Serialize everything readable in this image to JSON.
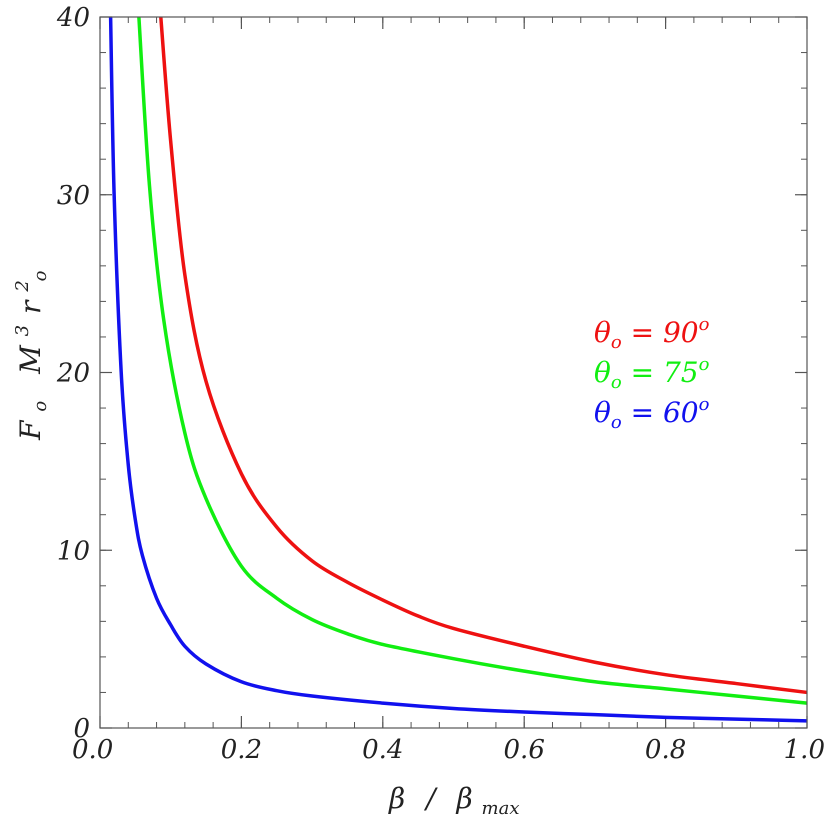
{
  "chart_data": {
    "type": "line",
    "title": "",
    "xlabel": {
      "main": "β",
      "slash": "/",
      "sub_base": "β",
      "sub": "max"
    },
    "ylabel": {
      "F": "F",
      "F_sub": "o",
      "M": "M",
      "M_sup": "3",
      "r": "r",
      "r_sub": "o",
      "r_sup": "2"
    },
    "xlim": [
      0,
      1
    ],
    "ylim": [
      0,
      40
    ],
    "xticks": [
      0,
      0.2,
      0.4,
      0.6,
      0.8,
      1.0
    ],
    "xtick_labels": [
      "0.0",
      "0.2",
      "0.4",
      "0.6",
      "0.8",
      "1.0"
    ],
    "yticks": [
      0,
      10,
      20,
      30,
      40
    ],
    "ytick_labels": [
      "0",
      "10",
      "20",
      "30",
      "40"
    ],
    "grid": false,
    "legend_position": "right-middle",
    "series": [
      {
        "name": "θo = 90o",
        "label": {
          "theta": "θ",
          "sub": "o",
          "eq": " = ",
          "value": "90",
          "sup": "o"
        },
        "color": "#ee1111",
        "x": [
          0.086,
          0.1,
          0.12,
          0.15,
          0.2,
          0.25,
          0.3,
          0.35,
          0.4,
          0.45,
          0.5,
          0.6,
          0.7,
          0.8,
          0.9,
          1.0
        ],
        "y": [
          40,
          33,
          25.5,
          19.5,
          14.3,
          11.3,
          9.4,
          8.2,
          7.2,
          6.3,
          5.6,
          4.6,
          3.7,
          3.0,
          2.5,
          2.0
        ]
      },
      {
        "name": "θo = 75o",
        "label": {
          "theta": "θ",
          "sub": "o",
          "eq": " = ",
          "value": "75",
          "sup": "o"
        },
        "color": "#11ee11",
        "x": [
          0.055,
          0.07,
          0.09,
          0.12,
          0.15,
          0.2,
          0.25,
          0.3,
          0.35,
          0.4,
          0.5,
          0.6,
          0.7,
          0.8,
          0.9,
          1.0
        ],
        "y": [
          40,
          30.5,
          23,
          16.6,
          12.9,
          9.1,
          7.3,
          6.1,
          5.3,
          4.7,
          3.9,
          3.2,
          2.6,
          2.2,
          1.8,
          1.4
        ]
      },
      {
        "name": "θo = 60o",
        "label": {
          "theta": "θ",
          "sub": "o",
          "eq": " = ",
          "value": "60",
          "sup": "o"
        },
        "color": "#1111ee",
        "x": [
          0.015,
          0.02,
          0.03,
          0.04,
          0.05,
          0.06,
          0.08,
          0.1,
          0.12,
          0.15,
          0.2,
          0.25,
          0.3,
          0.4,
          0.5,
          0.6,
          0.7,
          0.8,
          0.9,
          1.0
        ],
        "y": [
          40,
          30,
          20,
          14.8,
          11.7,
          9.7,
          7.3,
          5.8,
          4.6,
          3.6,
          2.6,
          2.1,
          1.8,
          1.4,
          1.1,
          0.9,
          0.75,
          0.6,
          0.5,
          0.4
        ]
      }
    ]
  }
}
